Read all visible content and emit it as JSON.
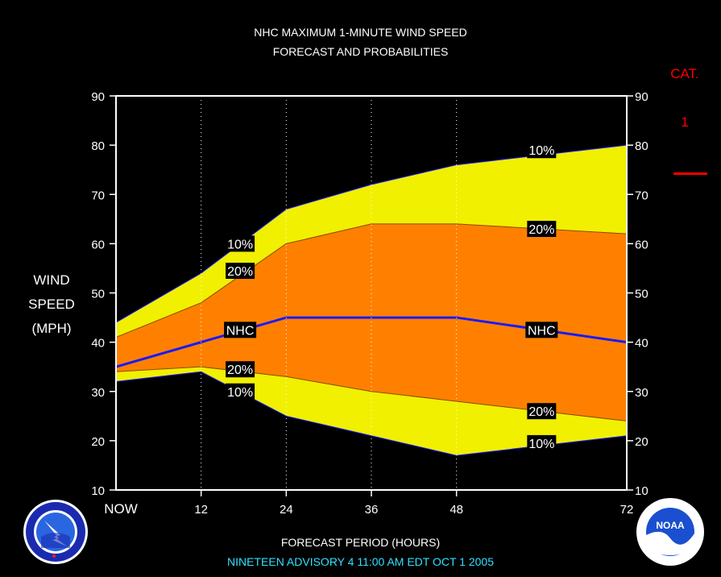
{
  "title_line1": "NHC MAXIMUM 1-MINUTE WIND SPEED",
  "title_line2": "FORECAST AND PROBABILITIES",
  "ylabel_line1": "WIND",
  "ylabel_line2": "SPEED",
  "ylabel_line3": "(MPH)",
  "xlabel": "FORECAST PERIOD (HOURS)",
  "advisory": "NINETEEN   ADVISORY  4 11:00 AM  EDT  OCT  1  2005",
  "category": {
    "label": "CAT.",
    "value": "1",
    "color": "#ff0000"
  },
  "logos": {
    "left": "NWS",
    "right": "NOAA"
  },
  "colors": {
    "band10": "#f0f000",
    "band20": "#ff8000",
    "nhc_line": "#1a1aff",
    "axis": "#ffffff",
    "background": "#000000"
  },
  "chart_data": {
    "type": "area",
    "x": [
      0,
      12,
      24,
      36,
      48,
      72
    ],
    "x_tick_labels": [
      "NOW",
      "12",
      "24",
      "36",
      "48",
      "72"
    ],
    "xlim": [
      0,
      72
    ],
    "ylim": [
      10,
      90
    ],
    "y_ticks": [
      10,
      20,
      30,
      40,
      50,
      60,
      70,
      80,
      90
    ],
    "xlabel": "FORECAST PERIOD (HOURS)",
    "ylabel": "WIND SPEED (MPH)",
    "series": [
      {
        "name": "10%",
        "values": [
          44,
          54,
          67,
          72,
          76,
          80
        ]
      },
      {
        "name": "20%",
        "values": [
          41,
          48,
          60,
          64,
          64,
          62
        ]
      },
      {
        "name": "NHC",
        "values": [
          35,
          40,
          45,
          45,
          45,
          40
        ]
      },
      {
        "name": "20%",
        "values": [
          34,
          35,
          33,
          30,
          28,
          24
        ]
      },
      {
        "name": "10%",
        "values": [
          32,
          34,
          25,
          21,
          17,
          21
        ]
      }
    ],
    "labels": [
      {
        "text": "10%",
        "x": 17.5,
        "y": 60
      },
      {
        "text": "20%",
        "x": 17.5,
        "y": 54.5
      },
      {
        "text": "NHC",
        "x": 17.5,
        "y": 42.5
      },
      {
        "text": "20%",
        "x": 17.5,
        "y": 34.5
      },
      {
        "text": "10%",
        "x": 17.5,
        "y": 30
      },
      {
        "text": "10%",
        "x": 60,
        "y": 79
      },
      {
        "text": "20%",
        "x": 60,
        "y": 63
      },
      {
        "text": "NHC",
        "x": 60,
        "y": 42.5
      },
      {
        "text": "20%",
        "x": 60,
        "y": 26
      },
      {
        "text": "10%",
        "x": 60,
        "y": 19.5
      }
    ]
  }
}
